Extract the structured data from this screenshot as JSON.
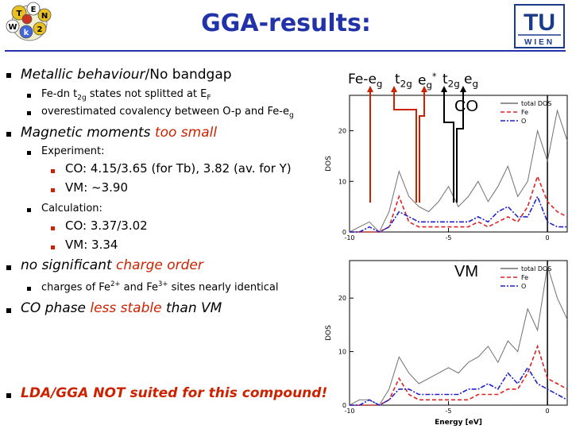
{
  "title": "GGA-results:",
  "logo_right": {
    "line1": "TU",
    "line2": "WIEN"
  },
  "logo_left": {
    "letters": [
      "T",
      "E",
      "W",
      "N",
      "2",
      "k"
    ]
  },
  "bullets": [
    {
      "text_a": "Metallic behaviour",
      "text_b": "/No bandgap"
    },
    {
      "sub1_a": "Fe-dn t",
      "sub1_sub": "2g",
      "sub1_b": " states not splitted at E",
      "sub1_sub2": "F"
    },
    {
      "sub2_a": "overestimated covalency between O-p and Fe-e",
      "sub2_sub": "g"
    },
    {
      "text_a": "Magnetic moments ",
      "text_b": "too small"
    },
    {
      "exp": "Experiment:"
    },
    {
      "co_exp": "CO: 4.15/3.65 (for Tb), 3.82 (av. for Y)"
    },
    {
      "vm_exp": "VM: ~3.90"
    },
    {
      "calc": "Calculation:"
    },
    {
      "co_calc": "CO: 3.37/3.02"
    },
    {
      "vm_calc": "VM: 3.34"
    },
    {
      "text_a": "no significant ",
      "text_b": "charge order"
    },
    {
      "charges_a": "charges of Fe",
      "charges_sup1": "2+",
      "charges_b": " and Fe",
      "charges_sup2": "3+",
      "charges_c": " sites nearly identical"
    },
    {
      "text_a": "CO phase ",
      "text_b": "less stable",
      "text_c": " than VM"
    },
    {
      "text_a": "LDA/GGA NOT suited for this compound!"
    }
  ],
  "annotation": {
    "fe_eg": "Fe-e",
    "fe_eg_sub": "g",
    "t2g": "t",
    "t2g_sub": "2g",
    "eg_star": "e",
    "eg_star_sub": "g",
    "eg_star_sup": "*",
    "t2g_b": "t",
    "t2g_b_sub": "2g",
    "eg_b": "e",
    "eg_b_sub": "g"
  },
  "chart_data": [
    {
      "type": "line",
      "panel_label": "CO",
      "xlabel": "",
      "ylabel": "DOS",
      "xlim": [
        -10,
        1
      ],
      "ylim": [
        0,
        27
      ],
      "yticks": [
        0,
        10,
        20
      ],
      "xticks": [
        -10,
        -5,
        0
      ],
      "legend": [
        "total DOS",
        "Fe",
        "O"
      ],
      "legend_placement": "top-right",
      "series": [
        {
          "name": "total DOS",
          "color": "#707070",
          "dash": "",
          "x": [
            -10,
            -9.5,
            -9,
            -8.5,
            -8,
            -7.5,
            -7,
            -6.5,
            -6,
            -5.5,
            -5,
            -4.5,
            -4,
            -3.5,
            -3,
            -2.5,
            -2,
            -1.5,
            -1,
            -0.5,
            0,
            0.5,
            1
          ],
          "y": [
            0,
            1,
            2,
            0,
            4,
            12,
            7,
            5,
            4,
            6,
            9,
            5,
            7,
            10,
            6,
            9,
            13,
            7,
            10,
            20,
            14,
            24,
            18
          ]
        },
        {
          "name": "Fe",
          "color": "#dd2222",
          "dash": "5,3",
          "x": [
            -10,
            -9.5,
            -9,
            -8.5,
            -8,
            -7.5,
            -7,
            -6.5,
            -6,
            -5.5,
            -5,
            -4.5,
            -4,
            -3.5,
            -3,
            -2.5,
            -2,
            -1.5,
            -1,
            -0.5,
            0,
            0.5,
            1
          ],
          "y": [
            0,
            0,
            0,
            0,
            1,
            7,
            2,
            1,
            1,
            1,
            1,
            1,
            1,
            2,
            1,
            2,
            3,
            2,
            5,
            11,
            6,
            4,
            3
          ]
        },
        {
          "name": "O",
          "color": "#2222cc",
          "dash": "6,2,2,2",
          "x": [
            -10,
            -9.5,
            -9,
            -8.5,
            -8,
            -7.5,
            -7,
            -6.5,
            -6,
            -5.5,
            -5,
            -4.5,
            -4,
            -3.5,
            -3,
            -2.5,
            -2,
            -1.5,
            -1,
            -0.5,
            0,
            0.5,
            1
          ],
          "y": [
            0,
            0,
            1,
            0,
            1,
            4,
            3,
            2,
            2,
            2,
            2,
            2,
            2,
            3,
            2,
            4,
            5,
            3,
            3,
            7,
            2,
            1,
            1
          ]
        }
      ]
    },
    {
      "type": "line",
      "panel_label": "VM",
      "xlabel": "Energy [eV]",
      "ylabel": "DOS",
      "xlim": [
        -10,
        1
      ],
      "ylim": [
        0,
        27
      ],
      "yticks": [
        0,
        10,
        20
      ],
      "xticks": [
        -10,
        -5,
        0
      ],
      "legend": [
        "total DOS",
        "Fe",
        "O"
      ],
      "legend_placement": "top-right",
      "series": [
        {
          "name": "total DOS",
          "color": "#707070",
          "dash": "",
          "x": [
            -10,
            -9.5,
            -9,
            -8.5,
            -8,
            -7.5,
            -7,
            -6.5,
            -6,
            -5.5,
            -5,
            -4.5,
            -4,
            -3.5,
            -3,
            -2.5,
            -2,
            -1.5,
            -1,
            -0.5,
            0,
            0.5,
            1
          ],
          "y": [
            0,
            1,
            1,
            0,
            3,
            9,
            6,
            4,
            5,
            6,
            7,
            6,
            8,
            9,
            11,
            8,
            12,
            10,
            18,
            14,
            26,
            20,
            16
          ]
        },
        {
          "name": "Fe",
          "color": "#dd2222",
          "dash": "5,3",
          "x": [
            -10,
            -9.5,
            -9,
            -8.5,
            -8,
            -7.5,
            -7,
            -6.5,
            -6,
            -5.5,
            -5,
            -4.5,
            -4,
            -3.5,
            -3,
            -2.5,
            -2,
            -1.5,
            -1,
            -0.5,
            0,
            0.5,
            1
          ],
          "y": [
            0,
            0,
            0,
            0,
            1,
            5,
            2,
            1,
            1,
            1,
            1,
            1,
            1,
            2,
            2,
            2,
            3,
            3,
            6,
            11,
            5,
            4,
            3
          ]
        },
        {
          "name": "O",
          "color": "#2222cc",
          "dash": "6,2,2,2",
          "x": [
            -10,
            -9.5,
            -9,
            -8.5,
            -8,
            -7.5,
            -7,
            -6.5,
            -6,
            -5.5,
            -5,
            -4.5,
            -4,
            -3.5,
            -3,
            -2.5,
            -2,
            -1.5,
            -1,
            -0.5,
            0,
            0.5,
            1
          ],
          "y": [
            0,
            0,
            1,
            0,
            1,
            3,
            3,
            2,
            2,
            2,
            2,
            2,
            3,
            3,
            4,
            3,
            6,
            4,
            7,
            4,
            3,
            2,
            1
          ]
        }
      ]
    }
  ]
}
